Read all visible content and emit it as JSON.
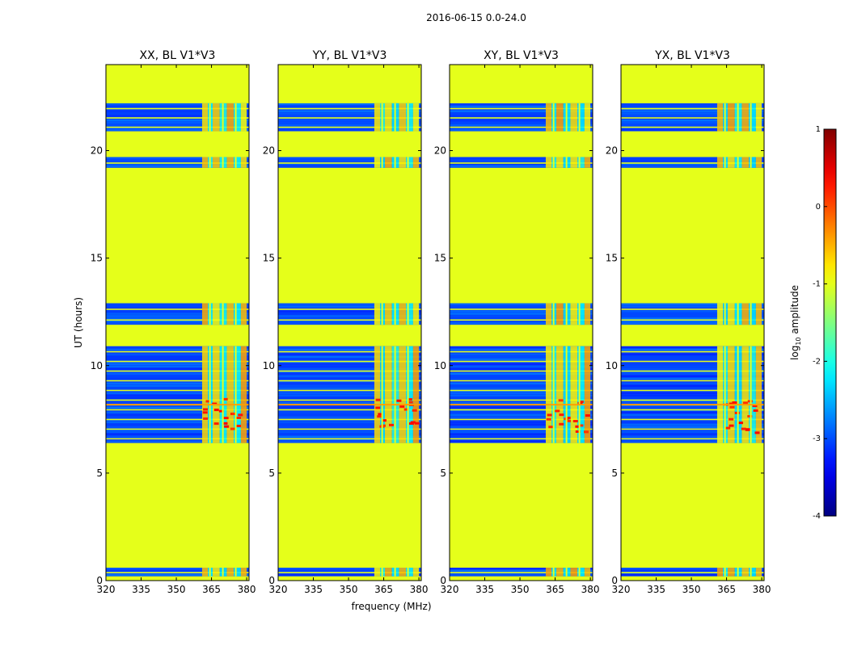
{
  "chart_data": {
    "type": "heatmap",
    "suptitle": "2016-06-15 0.0-24.0",
    "xlabel": "frequency (MHz)",
    "ylabel": "UT (hours)",
    "xlim": [
      320,
      381
    ],
    "ylim": [
      0,
      24
    ],
    "xticks": [
      320,
      335,
      350,
      365,
      380
    ],
    "yticks": [
      0,
      5,
      10,
      15,
      20
    ],
    "background_value": -1.0,
    "rfi_band_mhz": [
      361,
      380
    ],
    "data_blocks_hours": [
      {
        "start": 0.2,
        "end": 0.6
      },
      {
        "start": 6.4,
        "end": 10.9
      },
      {
        "start": 11.9,
        "end": 12.9
      },
      {
        "start": 19.2,
        "end": 19.7
      },
      {
        "start": 20.9,
        "end": 22.2
      }
    ],
    "panels": [
      {
        "title": "XX, BL V1*V3",
        "show_ylabel": true
      },
      {
        "title": "YY, BL V1*V3",
        "show_ylabel": false
      },
      {
        "title": "XY, BL V1*V3",
        "show_ylabel": false
      },
      {
        "title": "YX, BL V1*V3",
        "show_ylabel": false
      }
    ],
    "colorbar": {
      "label": "log10 amplitude",
      "label_base": "log",
      "label_sub": "10",
      "label_rest": " amplitude",
      "min": -4,
      "max": 1,
      "ticks": [
        1,
        0,
        -1,
        -2,
        -3,
        -4
      ],
      "colormap": "jet"
    }
  }
}
